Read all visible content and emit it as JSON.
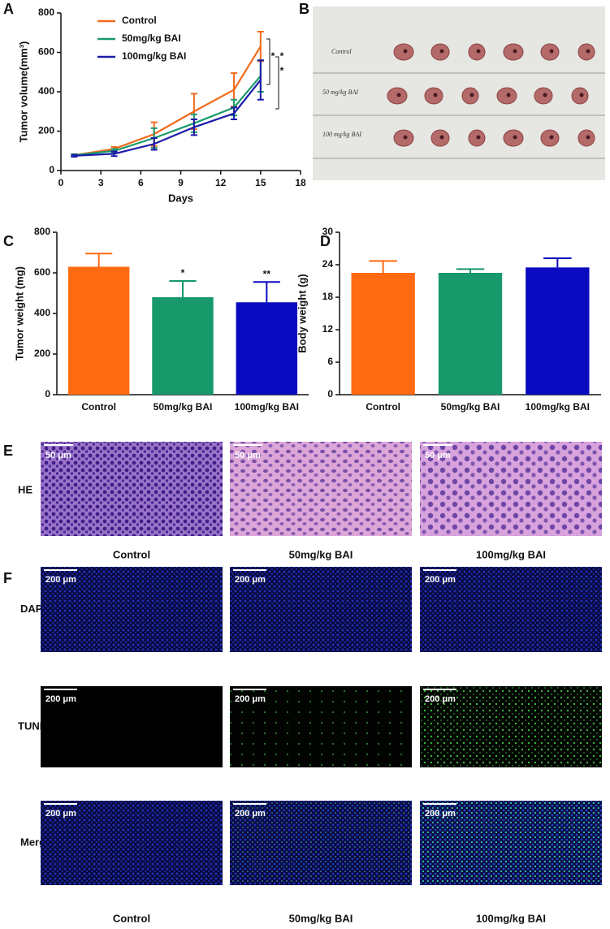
{
  "panel_labels": [
    "A",
    "B",
    "C",
    "D",
    "E",
    "F"
  ],
  "chart_data": [
    {
      "type": "line",
      "xlabel": "Days",
      "ylabel": "Tumor volume(mm³)",
      "x": [
        1,
        4,
        7,
        10,
        13,
        15
      ],
      "xlim": [
        0,
        18
      ],
      "xticks": [
        0,
        3,
        6,
        9,
        12,
        15,
        18
      ],
      "ylim": [
        0,
        800
      ],
      "yticks": [
        0,
        200,
        400,
        600,
        800
      ],
      "legend": "upper left",
      "series": [
        {
          "name": "Control",
          "color": "#f26a1b",
          "values": [
            78,
            110,
            185,
            300,
            410,
            630
          ],
          "errors": [
            5,
            10,
            60,
            90,
            85,
            75
          ]
        },
        {
          "name": "50mg/kg BAI",
          "color": "#1a9a6c",
          "values": [
            78,
            100,
            165,
            240,
            320,
            480
          ],
          "errors": [
            5,
            10,
            50,
            45,
            40,
            80
          ]
        },
        {
          "name": "100mg/kg BAI",
          "color": "#1a1aa8",
          "values": [
            75,
            85,
            135,
            220,
            290,
            460
          ],
          "errors": [
            5,
            12,
            30,
            40,
            30,
            100
          ]
        }
      ],
      "significance": [
        "*",
        "*",
        "*"
      ]
    },
    {
      "type": "bar",
      "ylabel": "Tumor weight (mg)",
      "categories": [
        "Control",
        "50mg/kg BAI",
        "100mg/kg BAI"
      ],
      "values": [
        630,
        480,
        455
      ],
      "errors": [
        65,
        80,
        100
      ],
      "annotations": [
        null,
        "*",
        "**"
      ],
      "colors": [
        "#ff6a13",
        "#17996b",
        "#0a0ac0"
      ],
      "ylim": [
        0,
        800
      ],
      "yticks": [
        0,
        200,
        400,
        600,
        800
      ]
    },
    {
      "type": "bar",
      "ylabel": "Body weight (g)",
      "categories": [
        "Control",
        "50mg/kg BAI",
        "100mg/kg BAI"
      ],
      "values": [
        22.5,
        22.5,
        23.5
      ],
      "errors": [
        2.2,
        0.7,
        1.7
      ],
      "annotations": [
        null,
        null,
        null
      ],
      "colors": [
        "#ff6a13",
        "#17996b",
        "#0a0ac0"
      ],
      "ylim": [
        0,
        30
      ],
      "yticks": [
        0,
        6,
        12,
        18,
        24,
        30
      ]
    }
  ],
  "tumor_photo": {
    "rows": [
      "Control",
      "50 mg/kg BAI",
      "100 mg/kg BAI"
    ]
  },
  "he": {
    "row_label": "HE",
    "scale_bar": "50 μm",
    "columns": [
      "Control",
      "50mg/kg BAI",
      "100mg/kg BAI"
    ]
  },
  "tunel": {
    "row_labels": [
      "DAPI",
      "TUNEL",
      "Merge"
    ],
    "scale_bar": "200 μm",
    "columns": [
      "Control",
      "50mg/kg BAI",
      "100mg/kg BAI"
    ]
  }
}
